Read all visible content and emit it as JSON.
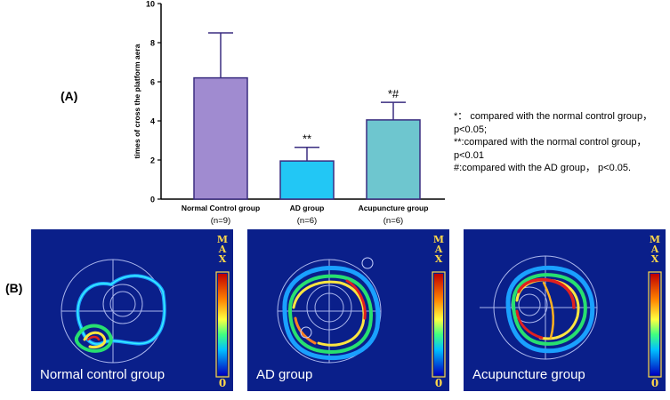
{
  "panel_a_label": "(A)",
  "panel_b_label": "(B)",
  "chart_data": {
    "type": "bar",
    "ylabel": "times of cross the platform aera",
    "ylim": [
      0,
      10
    ],
    "yticks": [
      "0",
      "2",
      "4",
      "6",
      "8",
      "10"
    ],
    "categories": [
      "Normal Control group",
      "AD group",
      "Acupuncture group"
    ],
    "sample_sizes": [
      "(n=9)",
      "(n=6)",
      "(n=6)"
    ],
    "values": [
      6.2,
      1.95,
      4.05
    ],
    "errors": [
      2.3,
      0.7,
      0.9
    ],
    "significance": [
      "",
      "**",
      "*#"
    ],
    "bar_colors": [
      "#a08bd0",
      "#22c7f5",
      "#6ec6cf"
    ],
    "error_color": "#3a2d80"
  },
  "notes": [
    "*： compared with the normal control group， p<0.05;",
    "**:compared with the normal control group， p<0.01",
    "#:compared with the AD group， p<0.05."
  ],
  "mazes": [
    {
      "caption": "Normal control group"
    },
    {
      "caption": "AD group"
    },
    {
      "caption": "Acupuncture group"
    }
  ],
  "scale": {
    "max_label": "MAX",
    "min_label": "0"
  },
  "colors": {
    "maze_background": "#0a1f8a",
    "label_yellow": "#ffd84a"
  }
}
